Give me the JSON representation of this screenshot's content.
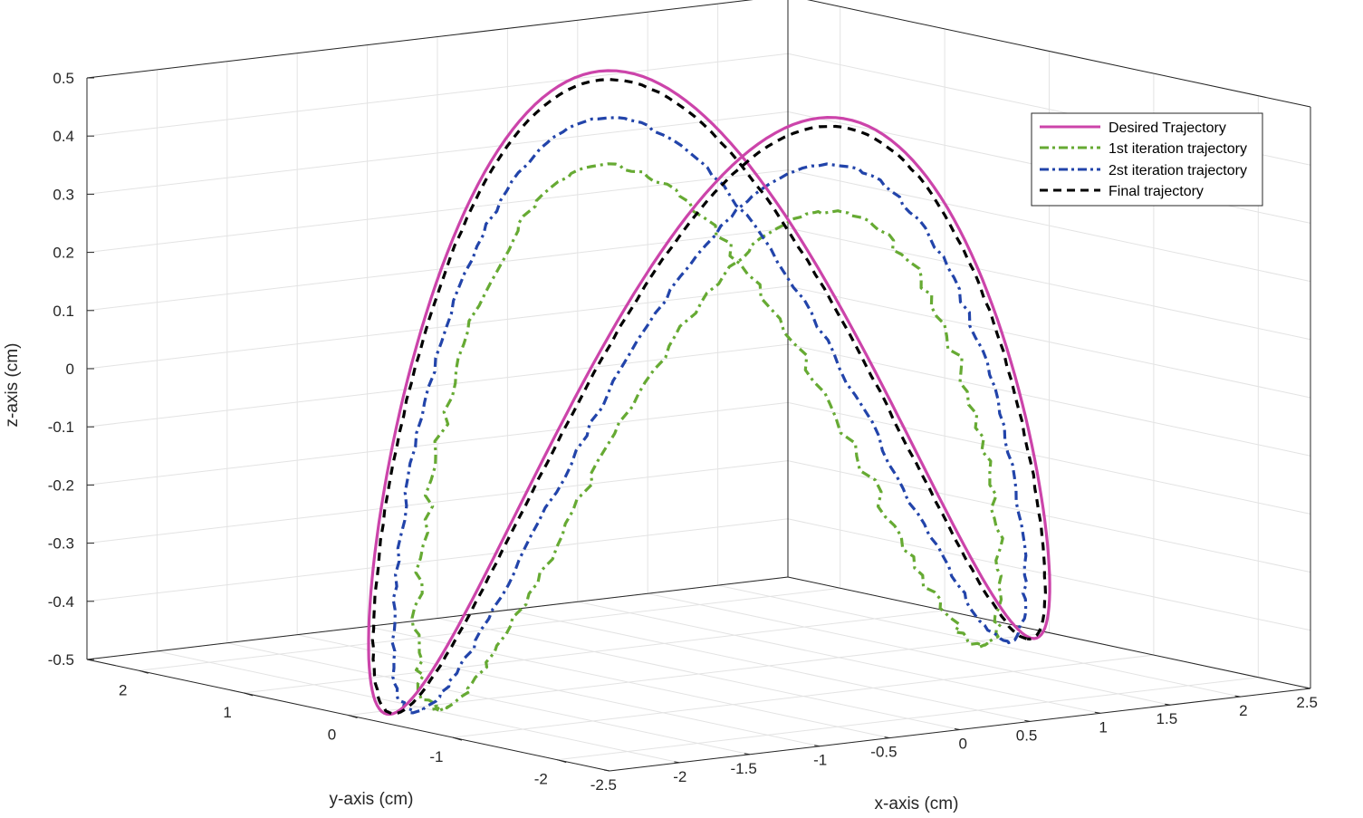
{
  "chart_data": {
    "type": "line3d",
    "title": "",
    "xlabel": "x-axis (cm)",
    "ylabel": "y-axis (cm)",
    "zlabel": "z-axis (cm)",
    "xlim": [
      -2.5,
      2.5
    ],
    "ylim": [
      -2.5,
      2.5
    ],
    "zlim": [
      -0.5,
      0.5
    ],
    "x_ticks": [
      "-2.5",
      "-2",
      "-1.5",
      "-1",
      "-0.5",
      "0",
      "0.5",
      "1",
      "1.5",
      "2",
      "2.5"
    ],
    "y_ticks": [
      "-2",
      "-1",
      "0",
      "1",
      "2"
    ],
    "z_ticks": [
      "-0.5",
      "-0.4",
      "-0.3",
      "-0.2",
      "-0.1",
      "0",
      "0.1",
      "0.2",
      "0.3",
      "0.4",
      "0.5"
    ],
    "grid": true,
    "legend_position": "top-right",
    "trajectory_model": "two parabolic arcs, x = 2.2 cos(t), y = 2.2 sin(t), z = 0.5 - 1.0 sin^2(t) style loop",
    "series": [
      {
        "name": "Desired Trajectory",
        "color": "#cc44aa",
        "style": "solid"
      },
      {
        "name": "1st iteration trajectory",
        "color": "#66aa33",
        "style": "dash-dot"
      },
      {
        "name": "2st iteration trajectory",
        "color": "#2244aa",
        "style": "dash-dot"
      },
      {
        "name": "Final trajectory",
        "color": "#000000",
        "style": "dashed"
      }
    ]
  }
}
